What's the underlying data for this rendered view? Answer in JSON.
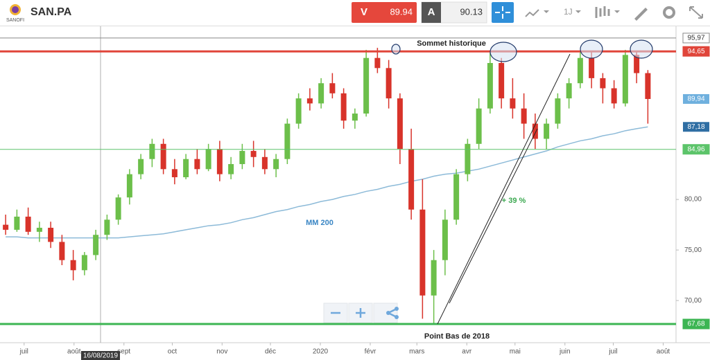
{
  "header": {
    "logo": "SANOFI",
    "symbol": "SAN.PA",
    "sell_label": "V",
    "sell": "89.94",
    "buy_label": "A",
    "buy": "90.13",
    "interval": "1J"
  },
  "chart_data": {
    "type": "candlestick",
    "up_color": "#6cbf4a",
    "down_color": "#d8332a",
    "ohlc": [
      [
        77.5,
        78.5,
        76.5,
        77
      ],
      [
        77,
        79,
        76.8,
        78.3
      ],
      [
        78.3,
        79.2,
        76.5,
        76.8
      ],
      [
        76.8,
        77.8,
        75.8,
        77.2
      ],
      [
        77.2,
        77.8,
        75.2,
        75.8
      ],
      [
        75.8,
        76.5,
        73.5,
        74
      ],
      [
        74,
        75,
        72,
        73
      ],
      [
        73,
        74.8,
        72.5,
        74.5
      ],
      [
        74.5,
        77,
        74,
        76.5
      ],
      [
        76.5,
        78.5,
        76,
        78
      ],
      [
        78,
        80.5,
        77.5,
        80.2
      ],
      [
        80.2,
        83,
        79.5,
        82.5
      ],
      [
        82.5,
        84.5,
        82,
        84
      ],
      [
        84,
        86,
        83.2,
        85.5
      ],
      [
        85.5,
        86,
        82.5,
        83
      ],
      [
        83,
        84,
        81.5,
        82.2
      ],
      [
        82.2,
        84.5,
        82,
        84
      ],
      [
        84,
        85,
        82.5,
        83
      ],
      [
        83,
        85.5,
        82.8,
        85
      ],
      [
        85,
        85.8,
        81.8,
        82.5
      ],
      [
        82.5,
        84.2,
        82,
        83.5
      ],
      [
        83.5,
        85.5,
        83,
        84.8
      ],
      [
        84.8,
        85.8,
        83.2,
        84.2
      ],
      [
        84.2,
        85,
        82.5,
        83
      ],
      [
        83,
        84.5,
        82.2,
        84
      ],
      [
        84,
        88,
        83.5,
        87.5
      ],
      [
        87.5,
        90.5,
        87,
        90
      ],
      [
        90,
        91,
        88.8,
        89.5
      ],
      [
        89.5,
        92,
        89,
        91.5
      ],
      [
        91.5,
        92.5,
        90,
        90.5
      ],
      [
        90.5,
        91,
        87,
        87.8
      ],
      [
        87.8,
        89,
        87,
        88.5
      ],
      [
        88.5,
        94.8,
        88.2,
        94
      ],
      [
        94,
        95,
        92.5,
        93
      ],
      [
        93,
        93.8,
        89,
        90
      ],
      [
        90,
        90.5,
        83.5,
        85
      ],
      [
        85,
        87,
        78,
        79
      ],
      [
        79,
        82,
        68.2,
        70.5
      ],
      [
        70.5,
        75,
        67.7,
        74
      ],
      [
        74,
        79,
        72.5,
        78
      ],
      [
        78,
        83,
        77.5,
        82.5
      ],
      [
        82.5,
        86,
        81.8,
        85.5
      ],
      [
        85.5,
        90,
        85,
        89
      ],
      [
        89,
        94.5,
        88.5,
        93.5
      ],
      [
        93.5,
        94,
        89,
        90
      ],
      [
        90,
        92,
        88,
        89
      ],
      [
        89,
        90.5,
        86,
        87.5
      ],
      [
        87.5,
        88.5,
        85,
        86
      ],
      [
        86,
        88,
        84.96,
        87.5
      ],
      [
        87.5,
        90.5,
        87,
        90
      ],
      [
        90,
        92,
        89,
        91.5
      ],
      [
        91.5,
        94.6,
        91,
        94
      ],
      [
        94,
        94.6,
        91,
        92
      ],
      [
        92,
        92.5,
        89.5,
        91
      ],
      [
        91,
        91.8,
        89,
        89.5
      ],
      [
        89.5,
        94.8,
        89.2,
        94.3
      ],
      [
        94.3,
        94.7,
        91.5,
        92.5
      ],
      [
        92.5,
        92.8,
        87.5,
        89.94
      ]
    ],
    "ma": {
      "name": "MM 200",
      "color": "#8cbad8",
      "values": [
        76.3,
        76.3,
        76.2,
        76.2,
        76.2,
        76.2,
        76.2,
        76.2,
        76.2,
        76.2,
        76.2,
        76.3,
        76.4,
        76.5,
        76.6,
        76.8,
        77,
        77.2,
        77.4,
        77.5,
        77.7,
        78,
        78.2,
        78.5,
        78.8,
        79,
        79.3,
        79.5,
        79.8,
        80,
        80.3,
        80.5,
        80.8,
        81,
        81.3,
        81.5,
        81.8,
        82,
        82.3,
        82.5,
        82.6,
        82.8,
        83,
        83.3,
        83.6,
        83.9,
        84.2,
        84.5,
        84.8,
        85.2,
        85.5,
        85.8,
        86,
        86.3,
        86.5,
        86.8,
        87,
        87.18
      ]
    },
    "ylim": [
      65.83,
      97.13
    ],
    "xlim": [
      0,
      60
    ],
    "yticks": [
      {
        "value": 70,
        "label": "70,00"
      },
      {
        "value": 75,
        "label": "75,00"
      },
      {
        "value": 80,
        "label": "80,00"
      }
    ],
    "xticks": [
      {
        "value": 2.14,
        "label": "juil"
      },
      {
        "value": 6.57,
        "label": "août"
      },
      {
        "value": 11,
        "label": "sept"
      },
      {
        "value": 15.29,
        "label": "oct"
      },
      {
        "value": 19.71,
        "label": "nov"
      },
      {
        "value": 24,
        "label": "déc"
      },
      {
        "value": 28.43,
        "label": "2020"
      },
      {
        "value": 32.86,
        "label": "févr"
      },
      {
        "value": 37,
        "label": "mars"
      },
      {
        "value": 41.43,
        "label": "avr"
      },
      {
        "value": 45.71,
        "label": "mai"
      },
      {
        "value": 50.14,
        "label": "juin"
      },
      {
        "value": 54.43,
        "label": "juil"
      },
      {
        "value": 58.86,
        "label": "août"
      }
    ],
    "levels": [
      {
        "value": 95.97,
        "label": "95,97",
        "color": "#888888",
        "width": 1
      },
      {
        "value": 94.65,
        "label": "94,65",
        "color": "#e0453a",
        "width": 3
      },
      {
        "value": 84.96,
        "label": "84,96",
        "color": "#5cc46a",
        "width": 1
      },
      {
        "value": 67.68,
        "label": "67,68",
        "color": "#3cb553",
        "width": 3
      }
    ],
    "price_tags": [
      {
        "value": 89.94,
        "label": "89,94",
        "color": "#6fb0de"
      },
      {
        "value": 87.18,
        "label": "87,18",
        "color": "#2f6ea3"
      }
    ],
    "crosshair": {
      "label": "16/08/2019"
    },
    "annotations": {
      "top": "Sommet historique",
      "bottom": "Point Bas de 2018",
      "gain": "+ 39 %"
    }
  }
}
